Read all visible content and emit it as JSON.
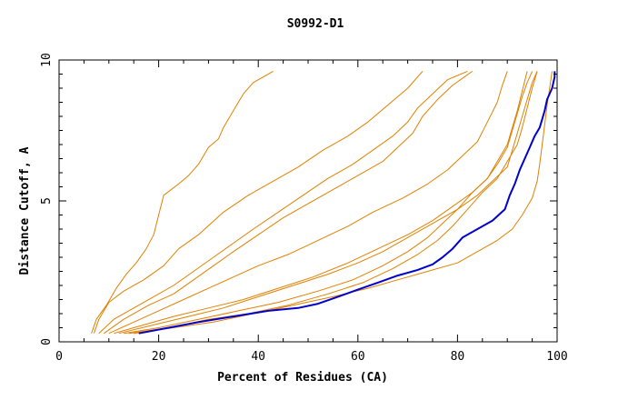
{
  "chart_data": {
    "type": "line",
    "title": "S0992-D1",
    "xlabel": "Percent of Residues (CA)",
    "ylabel": "Distance Cutoff, A",
    "xlim": [
      0,
      100
    ],
    "ylim": [
      0,
      10
    ],
    "x_ticks": [
      "0",
      "20",
      "40",
      "60",
      "80",
      "100"
    ],
    "y_ticks": [
      "0",
      "5",
      "10"
    ],
    "grid": false,
    "legend": "none",
    "colors": {
      "highlight": "#0000cc",
      "others": "#e08000",
      "axes": "#000000"
    },
    "series": [
      {
        "role": "other",
        "points": [
          [
            6.5,
            0.3
          ],
          [
            7.5,
            0.8
          ],
          [
            9.5,
            1.3
          ],
          [
            11.5,
            1.9
          ],
          [
            13.5,
            2.4
          ],
          [
            15.5,
            2.8
          ],
          [
            17.5,
            3.3
          ],
          [
            19,
            3.8
          ],
          [
            20,
            4.5
          ],
          [
            21,
            5.2
          ],
          [
            24,
            5.6
          ],
          [
            26,
            5.9
          ],
          [
            28,
            6.3
          ],
          [
            30,
            6.9
          ],
          [
            32,
            7.2
          ],
          [
            33,
            7.6
          ],
          [
            35,
            8.2
          ],
          [
            37,
            8.8
          ],
          [
            39,
            9.2
          ],
          [
            43,
            9.6
          ]
        ]
      },
      {
        "role": "other",
        "points": [
          [
            7,
            0.3
          ],
          [
            8,
            0.8
          ],
          [
            10,
            1.4
          ],
          [
            13,
            1.8
          ],
          [
            17,
            2.2
          ],
          [
            21,
            2.7
          ],
          [
            24,
            3.3
          ],
          [
            28,
            3.8
          ],
          [
            33,
            4.6
          ],
          [
            38,
            5.2
          ],
          [
            43,
            5.7
          ],
          [
            48,
            6.2
          ],
          [
            53,
            6.8
          ],
          [
            58,
            7.3
          ],
          [
            62,
            7.8
          ],
          [
            66,
            8.4
          ],
          [
            70,
            9.0
          ],
          [
            73,
            9.6
          ]
        ]
      },
      {
        "role": "other",
        "points": [
          [
            8,
            0.3
          ],
          [
            11,
            0.8
          ],
          [
            15,
            1.2
          ],
          [
            19,
            1.6
          ],
          [
            23,
            2.0
          ],
          [
            27,
            2.5
          ],
          [
            31,
            3.0
          ],
          [
            35,
            3.5
          ],
          [
            39,
            4.0
          ],
          [
            44,
            4.6
          ],
          [
            49,
            5.2
          ],
          [
            54,
            5.8
          ],
          [
            59,
            6.3
          ],
          [
            63,
            6.8
          ],
          [
            67,
            7.3
          ],
          [
            70,
            7.8
          ],
          [
            72,
            8.3
          ],
          [
            75,
            8.8
          ],
          [
            78,
            9.3
          ],
          [
            82,
            9.6
          ]
        ]
      },
      {
        "role": "other",
        "points": [
          [
            9,
            0.3
          ],
          [
            13,
            0.8
          ],
          [
            18,
            1.3
          ],
          [
            23,
            1.7
          ],
          [
            27,
            2.2
          ],
          [
            31,
            2.7
          ],
          [
            35,
            3.2
          ],
          [
            40,
            3.8
          ],
          [
            45,
            4.4
          ],
          [
            50,
            4.9
          ],
          [
            55,
            5.4
          ],
          [
            60,
            5.9
          ],
          [
            65,
            6.4
          ],
          [
            68,
            6.9
          ],
          [
            71,
            7.4
          ],
          [
            73,
            8.0
          ],
          [
            76,
            8.6
          ],
          [
            79,
            9.1
          ],
          [
            83,
            9.6
          ]
        ]
      },
      {
        "role": "other",
        "points": [
          [
            10,
            0.3
          ],
          [
            15,
            0.7
          ],
          [
            20,
            1.1
          ],
          [
            25,
            1.5
          ],
          [
            30,
            1.9
          ],
          [
            35,
            2.3
          ],
          [
            40,
            2.7
          ],
          [
            46,
            3.1
          ],
          [
            52,
            3.6
          ],
          [
            58,
            4.1
          ],
          [
            63,
            4.6
          ],
          [
            69,
            5.1
          ],
          [
            74,
            5.6
          ],
          [
            78,
            6.1
          ],
          [
            81,
            6.6
          ],
          [
            84,
            7.1
          ],
          [
            86,
            7.8
          ],
          [
            88,
            8.5
          ],
          [
            89,
            9.1
          ],
          [
            90,
            9.6
          ]
        ]
      },
      {
        "role": "other",
        "points": [
          [
            11,
            0.3
          ],
          [
            17,
            0.6
          ],
          [
            23,
            0.9
          ],
          [
            30,
            1.2
          ],
          [
            37,
            1.5
          ],
          [
            44,
            1.9
          ],
          [
            51,
            2.3
          ],
          [
            58,
            2.8
          ],
          [
            64,
            3.3
          ],
          [
            70,
            3.8
          ],
          [
            75,
            4.3
          ],
          [
            79,
            4.8
          ],
          [
            83,
            5.3
          ],
          [
            86,
            5.8
          ],
          [
            88,
            6.3
          ],
          [
            90,
            6.9
          ],
          [
            91,
            7.5
          ],
          [
            92,
            8.1
          ],
          [
            93,
            8.7
          ],
          [
            94,
            9.2
          ],
          [
            95,
            9.6
          ]
        ]
      },
      {
        "role": "other",
        "points": [
          [
            12,
            0.3
          ],
          [
            19,
            0.6
          ],
          [
            26,
            0.9
          ],
          [
            33,
            1.2
          ],
          [
            40,
            1.6
          ],
          [
            47,
            2.0
          ],
          [
            54,
            2.4
          ],
          [
            60,
            2.8
          ],
          [
            65,
            3.2
          ],
          [
            70,
            3.7
          ],
          [
            75,
            4.2
          ],
          [
            80,
            4.7
          ],
          [
            84,
            5.2
          ],
          [
            87,
            5.7
          ],
          [
            90,
            6.2
          ],
          [
            91,
            6.8
          ],
          [
            92,
            7.4
          ],
          [
            93,
            8.0
          ],
          [
            94,
            8.6
          ],
          [
            95,
            9.2
          ],
          [
            96,
            9.6
          ]
        ]
      },
      {
        "role": "other",
        "points": [
          [
            13,
            0.3
          ],
          [
            20,
            0.5
          ],
          [
            28,
            0.8
          ],
          [
            36,
            1.1
          ],
          [
            44,
            1.4
          ],
          [
            52,
            1.8
          ],
          [
            59,
            2.2
          ],
          [
            65,
            2.7
          ],
          [
            70,
            3.2
          ],
          [
            74,
            3.7
          ],
          [
            77,
            4.2
          ],
          [
            80,
            4.7
          ],
          [
            83,
            5.3
          ],
          [
            86,
            5.8
          ],
          [
            88,
            6.4
          ],
          [
            90,
            7.0
          ],
          [
            91,
            7.6
          ],
          [
            92,
            8.2
          ],
          [
            93,
            8.9
          ],
          [
            94,
            9.6
          ]
        ]
      },
      {
        "role": "other",
        "points": [
          [
            14,
            0.3
          ],
          [
            22,
            0.5
          ],
          [
            30,
            0.8
          ],
          [
            38,
            1.0
          ],
          [
            46,
            1.3
          ],
          [
            54,
            1.7
          ],
          [
            61,
            2.1
          ],
          [
            67,
            2.6
          ],
          [
            72,
            3.1
          ],
          [
            76,
            3.6
          ],
          [
            79,
            4.1
          ],
          [
            82,
            4.7
          ],
          [
            85,
            5.3
          ],
          [
            88,
            5.8
          ],
          [
            90,
            6.4
          ],
          [
            92,
            7.0
          ],
          [
            93,
            7.6
          ],
          [
            94,
            8.3
          ],
          [
            95,
            9.0
          ],
          [
            96,
            9.6
          ]
        ]
      },
      {
        "role": "other",
        "points": [
          [
            15,
            0.3
          ],
          [
            23,
            0.5
          ],
          [
            31,
            0.7
          ],
          [
            39,
            1.0
          ],
          [
            47,
            1.3
          ],
          [
            55,
            1.6
          ],
          [
            62,
            1.9
          ],
          [
            68,
            2.2
          ],
          [
            74,
            2.5
          ],
          [
            80,
            2.8
          ],
          [
            84,
            3.2
          ],
          [
            88,
            3.6
          ],
          [
            91,
            4.0
          ],
          [
            93,
            4.5
          ],
          [
            95,
            5.1
          ],
          [
            96,
            5.7
          ],
          [
            96.5,
            6.3
          ],
          [
            97,
            7.0
          ],
          [
            97.5,
            7.7
          ],
          [
            98,
            8.4
          ],
          [
            98.5,
            9.0
          ],
          [
            99,
            9.6
          ]
        ]
      },
      {
        "role": "highlight",
        "points": [
          [
            16,
            0.3
          ],
          [
            22,
            0.5
          ],
          [
            28,
            0.7
          ],
          [
            35,
            0.9
          ],
          [
            42,
            1.1
          ],
          [
            48,
            1.2
          ],
          [
            52,
            1.35
          ],
          [
            56,
            1.6
          ],
          [
            60,
            1.85
          ],
          [
            64,
            2.1
          ],
          [
            68,
            2.35
          ],
          [
            72,
            2.55
          ],
          [
            75,
            2.75
          ],
          [
            77,
            3.0
          ],
          [
            79,
            3.3
          ],
          [
            81,
            3.7
          ],
          [
            84,
            4.0
          ],
          [
            87,
            4.3
          ],
          [
            89.5,
            4.7
          ],
          [
            90.5,
            5.2
          ],
          [
            91.5,
            5.6
          ],
          [
            92.5,
            6.1
          ],
          [
            93.5,
            6.5
          ],
          [
            94.5,
            6.9
          ],
          [
            95.5,
            7.3
          ],
          [
            96.5,
            7.6
          ],
          [
            97,
            7.9
          ],
          [
            97.5,
            8.2
          ],
          [
            98,
            8.6
          ],
          [
            99,
            9.0
          ],
          [
            99.5,
            9.4
          ],
          [
            99.5,
            9.6
          ]
        ]
      }
    ]
  }
}
